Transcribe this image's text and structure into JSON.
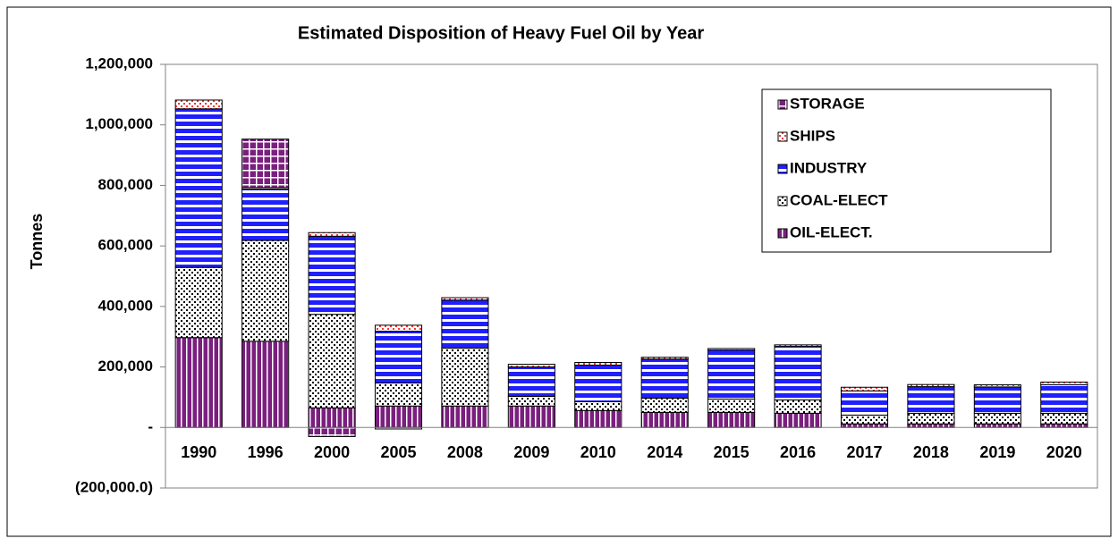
{
  "chart_data": {
    "type": "stacked_bar",
    "title": "Estimated Disposition of Heavy Fuel Oil by Year",
    "y_label": "Tonnes",
    "categories": [
      "1990",
      "1996",
      "2000",
      "2005",
      "2008",
      "2009",
      "2010",
      "2014",
      "2015",
      "2016",
      "2017",
      "2018",
      "2019",
      "2020"
    ],
    "series": [
      {
        "name": "OIL-ELECT.",
        "color": "#7b1f7f",
        "pattern": "vstripes",
        "values": [
          297000,
          285000,
          65000,
          71000,
          71000,
          71000,
          56000,
          50000,
          50000,
          47000,
          12000,
          12000,
          12000,
          12000
        ]
      },
      {
        "name": "COAL-ELECT",
        "color": "#000000",
        "pattern": "dots",
        "values": [
          232000,
          333000,
          309000,
          76000,
          191000,
          32000,
          29000,
          47000,
          44000,
          44000,
          29000,
          35000,
          35000,
          35000
        ]
      },
      {
        "name": "INDUSTRY",
        "color": "#1f1fff",
        "pattern": "hstripes",
        "values": [
          524000,
          170000,
          258000,
          171000,
          159000,
          97000,
          121000,
          129000,
          162000,
          177000,
          80000,
          88000,
          87000,
          94000
        ]
      },
      {
        "name": "SHIPS",
        "color": "#ff3030",
        "pattern": "reddots",
        "values": [
          29000,
          5000,
          12000,
          20000,
          8000,
          9000,
          9000,
          6000,
          5000,
          5000,
          12000,
          7000,
          7000,
          9000
        ]
      },
      {
        "name": "STORAGE",
        "color": "#7b1f7f",
        "pattern": "grid",
        "values": [
          0,
          160000,
          -30000,
          -5000,
          0,
          0,
          0,
          0,
          0,
          0,
          0,
          0,
          0,
          0
        ]
      }
    ],
    "ylim": [
      -200000,
      1200000
    ],
    "yticks": [
      {
        "value": -200000,
        "label": "(200,000.0)"
      },
      {
        "value": 0,
        "label": "-"
      },
      {
        "value": 200000,
        "label": "200,000"
      },
      {
        "value": 400000,
        "label": "400,000"
      },
      {
        "value": 600000,
        "label": "600,000"
      },
      {
        "value": 800000,
        "label": "800,000"
      },
      {
        "value": 1000000,
        "label": "1,000,000"
      },
      {
        "value": 1200000,
        "label": "1,200,000"
      }
    ],
    "legend": "top-right",
    "grid": false
  }
}
